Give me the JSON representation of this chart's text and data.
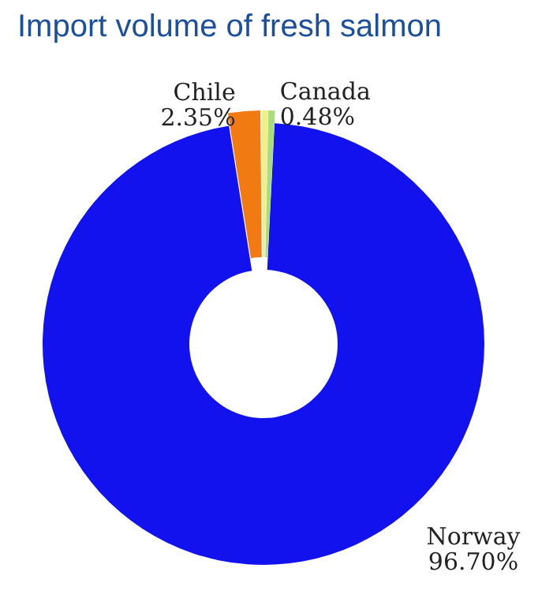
{
  "chart_data": {
    "type": "donut",
    "title": "Import volume of fresh salmon",
    "categories": [
      "Chile",
      null,
      "Canada",
      "Norway"
    ],
    "values": [
      2.35,
      0.47,
      0.48,
      96.7
    ],
    "value_labels": [
      "2.35%",
      null,
      "0.48%",
      "96.70%"
    ],
    "colors": [
      "#f27a12",
      "#f2ee8a",
      "#a8dc7c",
      "#1212ee"
    ],
    "legend": false
  }
}
